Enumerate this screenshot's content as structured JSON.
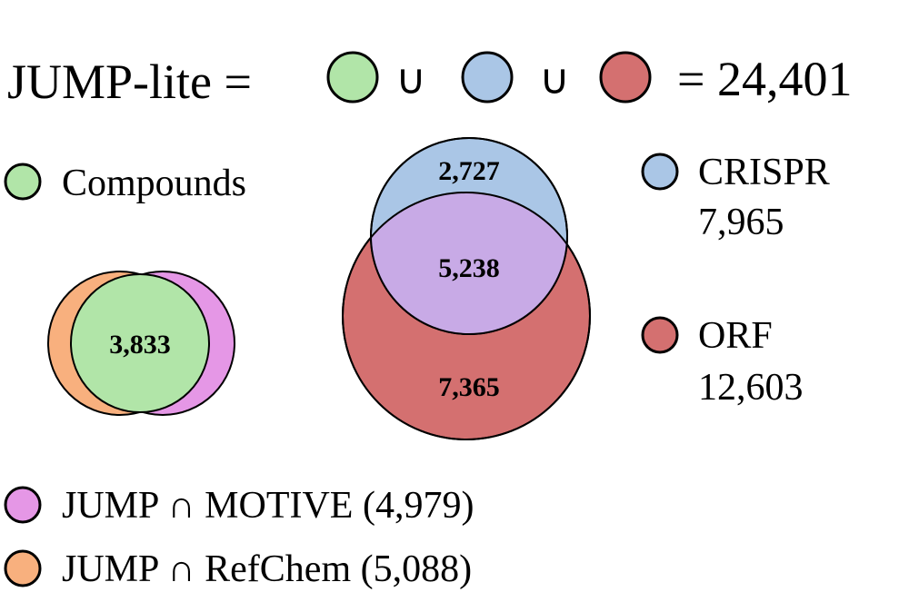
{
  "equation": {
    "lhs": "JUMP-lite =",
    "union_symbol": "∪",
    "rhs": "= 24,401"
  },
  "legend_top": {
    "compounds": {
      "label": "Compounds",
      "color": "#b1e5a8"
    },
    "crispr": {
      "label": "CRISPR",
      "value": "7,965",
      "color": "#aac6e6"
    },
    "orf": {
      "label": "ORF",
      "value": "12,603",
      "color": "#d47070"
    }
  },
  "compound_venn": {
    "center_value": "3,833",
    "colors": {
      "compounds": "#b1e5a8",
      "motive": "#e597e6",
      "refchem": "#f8b07e",
      "overlap": "#c0c0c0"
    }
  },
  "genetic_venn": {
    "crispr_only": "2,727",
    "overlap": "5,238",
    "orf_only": "7,365",
    "colors": {
      "crispr": "#aac6e6",
      "orf": "#d47070",
      "overlap": "#c8aae6"
    }
  },
  "legend_bottom": {
    "motive": {
      "label": "JUMP ∩ MOTIVE (4,979)",
      "color": "#e597e6"
    },
    "refchem": {
      "label": "JUMP ∩ RefChem (5,088)",
      "color": "#f8b07e"
    }
  }
}
